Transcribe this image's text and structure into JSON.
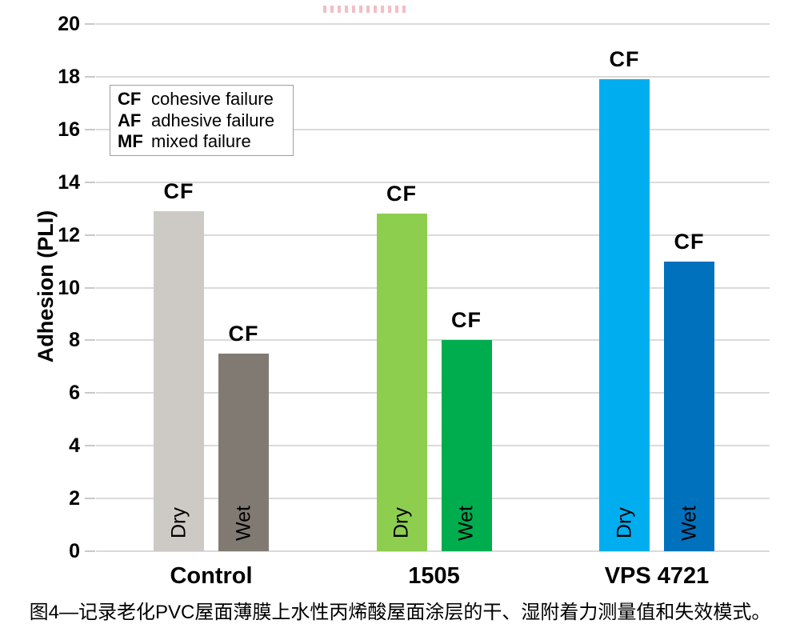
{
  "caption": "图4—记录老化PVC屋面薄膜上水性丙烯酸屋面涂层的干、湿附着力测量值和失效模式。",
  "watermark": {
    "color": "#e16e82"
  },
  "chart_data": {
    "type": "bar",
    "title": "",
    "xlabel": "",
    "ylabel": "Adhesion (PLI)",
    "ylim": [
      0,
      20
    ],
    "yticks": [
      0,
      2,
      4,
      6,
      8,
      10,
      12,
      14,
      16,
      18,
      20
    ],
    "grid": true,
    "grid_color": "#dadada",
    "categories": [
      "Control",
      "1505",
      "VPS 4721"
    ],
    "series": [
      {
        "name": "Dry",
        "values": [
          12.9,
          12.8,
          17.9
        ],
        "colors": [
          "#cdc9c5",
          "#8dce4f",
          "#00aeef"
        ],
        "bar_labels": [
          "CF",
          "CF",
          "CF"
        ]
      },
      {
        "name": "Wet",
        "values": [
          7.5,
          8.0,
          11.0
        ],
        "colors": [
          "#817a73",
          "#00ad4e",
          "#0071bd"
        ],
        "bar_labels": [
          "CF",
          "CF",
          "CF"
        ]
      }
    ],
    "legend": {
      "position": "upper-left",
      "entries": [
        {
          "abbr": "CF",
          "label": "cohesive failure"
        },
        {
          "abbr": "AF",
          "label": "adhesive failure"
        },
        {
          "abbr": "MF",
          "label": "mixed failure"
        }
      ]
    }
  }
}
